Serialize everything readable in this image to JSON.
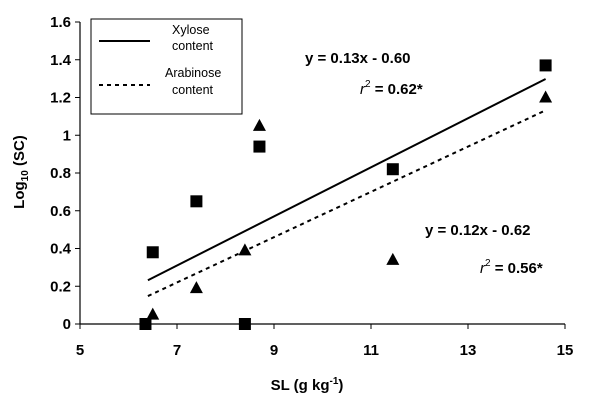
{
  "chart_data": {
    "type": "scatter",
    "xlabel_main": "SL (g kg",
    "xlabel_sup": "-1",
    "xlabel_tail": ")",
    "ylabel_pre": "Log",
    "ylabel_sub": "10",
    "ylabel_post": " (SC)",
    "xlim": [
      5,
      15
    ],
    "ylim": [
      0,
      1.6
    ],
    "xticks": [
      "5",
      "7",
      "9",
      "11",
      "13",
      "15"
    ],
    "yticks": [
      "0",
      "0.2",
      "0.4",
      "0.6",
      "0.8",
      "1",
      "1.2",
      "1.4",
      "1.6"
    ],
    "legend": {
      "position": "top-left",
      "items": [
        {
          "line1": "Xylose",
          "line2": "content",
          "style": "solid"
        },
        {
          "line1": "Arabinose",
          "line2": "content",
          "style": "dashed"
        }
      ]
    },
    "series": [
      {
        "name": "Xylose content",
        "marker": "square",
        "points": [
          {
            "x": 6.35,
            "y": 0.0
          },
          {
            "x": 6.5,
            "y": 0.38
          },
          {
            "x": 7.4,
            "y": 0.65
          },
          {
            "x": 8.4,
            "y": 0.0
          },
          {
            "x": 8.7,
            "y": 0.94
          },
          {
            "x": 11.45,
            "y": 0.82
          },
          {
            "x": 14.6,
            "y": 1.37
          }
        ],
        "trend": {
          "style": "solid",
          "x": [
            6.4,
            14.6
          ],
          "y": [
            0.232,
            1.298
          ]
        }
      },
      {
        "name": "Arabinose content",
        "marker": "triangle",
        "points": [
          {
            "x": 6.5,
            "y": 0.05
          },
          {
            "x": 7.4,
            "y": 0.19
          },
          {
            "x": 8.4,
            "y": 0.39
          },
          {
            "x": 8.7,
            "y": 1.05
          },
          {
            "x": 11.45,
            "y": 0.34
          },
          {
            "x": 14.6,
            "y": 1.2
          }
        ],
        "trend": {
          "style": "dashed",
          "x": [
            6.4,
            14.6
          ],
          "y": [
            0.148,
            1.132
          ]
        }
      }
    ],
    "annotations": [
      {
        "equation": "y = 0.13x - 0.60",
        "r2_symbol": "r",
        "r2_sup": "2",
        "r2_value": " = 0.62*"
      },
      {
        "equation": "y = 0.12x - 0.62",
        "r2_symbol": "r",
        "r2_sup": "2",
        "r2_value": " = 0.56*"
      }
    ]
  }
}
